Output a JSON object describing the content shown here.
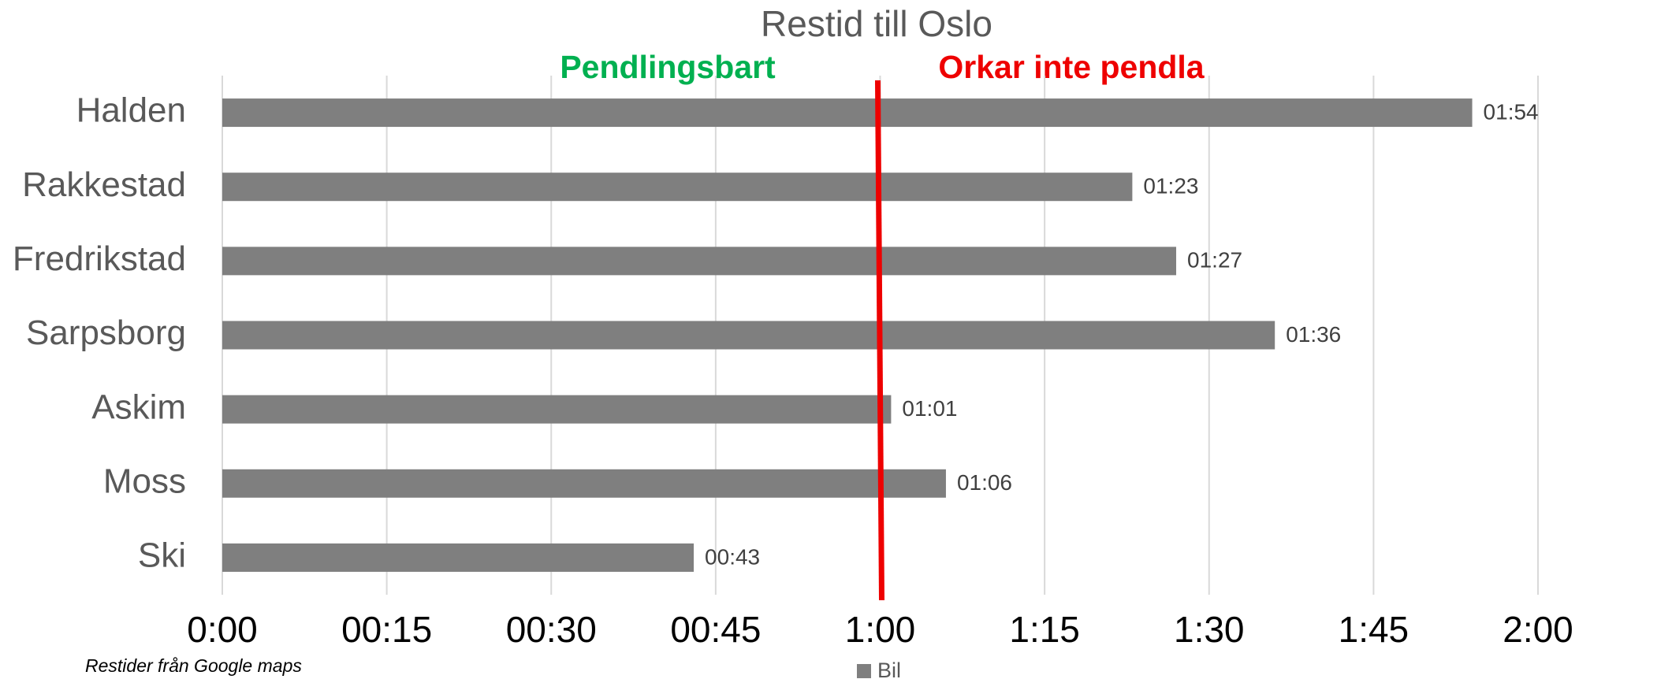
{
  "chart_data": {
    "type": "barh",
    "title": "Restid till Oslo",
    "categories": [
      "Halden",
      "Rakkestad",
      "Fredrikstad",
      "Sarpsborg",
      "Askim",
      "Moss",
      "Ski"
    ],
    "series": [
      {
        "name": "Bil",
        "color": "#7f7f7f",
        "values": [
          114,
          83,
          87,
          96,
          61,
          66,
          43
        ],
        "value_labels": [
          "01:54",
          "01:23",
          "01:27",
          "01:36",
          "01:01",
          "01:06",
          "00:43"
        ]
      }
    ],
    "xlim": [
      0,
      120
    ],
    "xticks": [
      {
        "value": 0,
        "label": "0:00"
      },
      {
        "value": 15,
        "label": "00:15"
      },
      {
        "value": 30,
        "label": "00:30"
      },
      {
        "value": 45,
        "label": "00:45"
      },
      {
        "value": 60,
        "label": "1:00"
      },
      {
        "value": 75,
        "label": "1:15"
      },
      {
        "value": 90,
        "label": "1:30"
      },
      {
        "value": 105,
        "label": "1:45"
      },
      {
        "value": 120,
        "label": "2:00"
      }
    ],
    "grid": true,
    "reference_line": {
      "value": 60,
      "color": "#ee0000"
    },
    "annotations": [
      {
        "text": "Pendlingsbart",
        "color": "#00b050"
      },
      {
        "text": "Orkar inte pendla",
        "color": "#ee0000"
      }
    ],
    "source": "Restider från Google maps",
    "legend": "bottom"
  }
}
